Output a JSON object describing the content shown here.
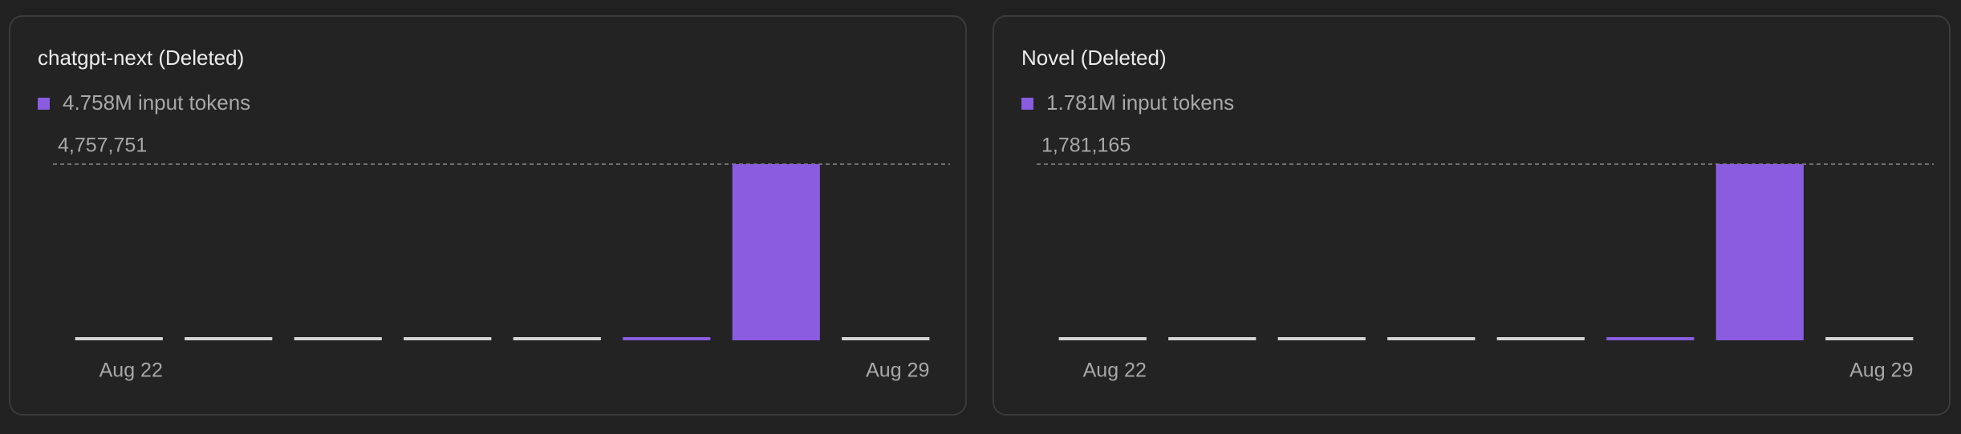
{
  "chart_data": [
    {
      "type": "bar",
      "title": "chatgpt-next (Deleted)",
      "categories": [
        "Aug 22",
        null,
        null,
        null,
        null,
        null,
        null,
        "Aug 29"
      ],
      "series": [
        {
          "name": "4.758M input tokens",
          "color": "#8a5cdf",
          "values": [
            0,
            0,
            0,
            0,
            0,
            120,
            4757751,
            0
          ]
        }
      ],
      "ylim": [
        0,
        4757751
      ],
      "yticks": [
        {
          "value": 4757751,
          "label": "4,757,751"
        }
      ],
      "grid": true
    },
    {
      "type": "bar",
      "title": "Novel (Deleted)",
      "categories": [
        "Aug 22",
        null,
        null,
        null,
        null,
        null,
        null,
        "Aug 29"
      ],
      "series": [
        {
          "name": "1.781M input tokens",
          "color": "#8a5cdf",
          "values": [
            0,
            0,
            0,
            0,
            0,
            40,
            1781165,
            0
          ]
        }
      ],
      "ylim": [
        0,
        1781165
      ],
      "yticks": [
        {
          "value": 1781165,
          "label": "1,781,165"
        }
      ],
      "grid": true
    }
  ]
}
